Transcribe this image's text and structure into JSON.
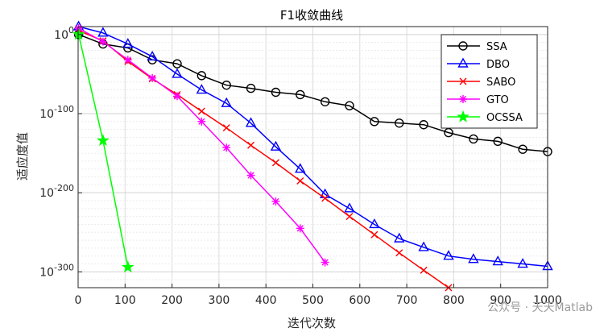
{
  "chart_data": {
    "type": "line",
    "title": "F1收敛曲线",
    "xlabel": "迭代次数",
    "ylabel": "适应度值",
    "xlim": [
      0,
      1000
    ],
    "ylim_log10": [
      -320,
      10
    ],
    "y_scale": "log",
    "x_ticks": [
      0,
      100,
      200,
      300,
      400,
      500,
      600,
      700,
      800,
      900,
      1000
    ],
    "y_ticks": [
      {
        "exp": 0,
        "base": "10",
        "sup": "0"
      },
      {
        "exp": -100,
        "base": "10",
        "sup": "-100"
      },
      {
        "exp": -200,
        "base": "10",
        "sup": "-200"
      },
      {
        "exp": -300,
        "base": "10",
        "sup": "-300"
      }
    ],
    "grid": true,
    "legend_position": "top-right",
    "series": [
      {
        "name": "SSA",
        "color": "#000000",
        "marker": "circle",
        "x": [
          1,
          53,
          106,
          158,
          211,
          263,
          316,
          368,
          421,
          473,
          526,
          578,
          631,
          684,
          736,
          789,
          842,
          894,
          947,
          1000
        ],
        "y_log10": [
          0,
          -12,
          -17,
          -32,
          -37,
          -52,
          -64,
          -68,
          -73,
          -76,
          -85,
          -90,
          -110,
          -112,
          -114,
          -124,
          -132,
          -135,
          -145,
          -148
        ]
      },
      {
        "name": "DBO",
        "color": "#0000ff",
        "marker": "triangle",
        "x": [
          1,
          53,
          106,
          158,
          211,
          263,
          316,
          368,
          421,
          473,
          526,
          578,
          631,
          684,
          736,
          789,
          842,
          894,
          947,
          1000
        ],
        "y_log10": [
          10,
          2,
          -12,
          -28,
          -50,
          -70,
          -87,
          -112,
          -142,
          -170,
          -202,
          -220,
          -240,
          -258,
          -269,
          -280,
          -284,
          -287,
          -290,
          -293
        ]
      },
      {
        "name": "SABO",
        "color": "#ff0000",
        "marker": "x",
        "x": [
          1,
          53,
          106,
          158,
          211,
          263,
          316,
          368,
          421,
          473,
          526,
          578,
          631,
          684,
          736,
          789
        ],
        "y_log10": [
          5,
          -8,
          -34,
          -56,
          -76,
          -97,
          -118,
          -140,
          -162,
          -185,
          -207,
          -230,
          -253,
          -276,
          -298,
          -320
        ]
      },
      {
        "name": "GTO",
        "color": "#ff00ff",
        "marker": "asterisk",
        "x": [
          1,
          53,
          106,
          158,
          211,
          263,
          316,
          368,
          421,
          473,
          526
        ],
        "y_log10": [
          8,
          -9,
          -32,
          -55,
          -78,
          -110,
          -143,
          -178,
          -211,
          -245,
          -288
        ]
      },
      {
        "name": "OCSSA",
        "color": "#00ff00",
        "marker": "star",
        "x": [
          1,
          53,
          106
        ],
        "y_log10": [
          0,
          -134,
          -294
        ]
      }
    ]
  },
  "watermark": "公众号 · 天天Matlab"
}
